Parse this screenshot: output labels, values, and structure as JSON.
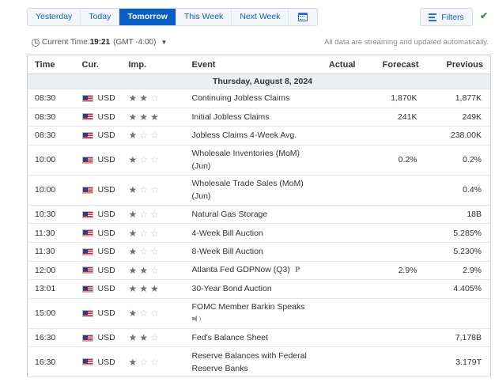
{
  "tabs": [
    {
      "label": "Yesterday",
      "active": false
    },
    {
      "label": "Today",
      "active": false
    },
    {
      "label": "Tomorrow",
      "active": true
    },
    {
      "label": "This Week",
      "active": false
    },
    {
      "label": "Next Week",
      "active": false
    }
  ],
  "filters_label": "Filters",
  "time_bar": {
    "label": "Current Time:",
    "time": "19:21",
    "timezone": "(GMT -4:00)"
  },
  "streaming_note": "All data are streaming and updated automatically.",
  "columns": {
    "time": "Time",
    "currency": "Cur.",
    "importance": "Imp.",
    "event": "Event",
    "actual": "Actual",
    "forecast": "Forecast",
    "previous": "Previous"
  },
  "day_header": "Thursday, August 8, 2024",
  "events": [
    {
      "time": "08:30",
      "currency": "USD",
      "importance": 2,
      "event": "Continuing Jobless Claims",
      "event_sub": "",
      "actual": "",
      "forecast": "1,870K",
      "previous": "1,877K",
      "tag": ""
    },
    {
      "time": "08:30",
      "currency": "USD",
      "importance": 3,
      "event": "Initial Jobless Claims",
      "event_sub": "",
      "actual": "",
      "forecast": "241K",
      "previous": "249K",
      "tag": ""
    },
    {
      "time": "08:30",
      "currency": "USD",
      "importance": 1,
      "event": "Jobless Claims 4-Week Avg.",
      "event_sub": "",
      "actual": "",
      "forecast": "",
      "previous": "238.00K",
      "tag": ""
    },
    {
      "time": "10:00",
      "currency": "USD",
      "importance": 1,
      "event": "Wholesale Inventories (MoM)",
      "event_sub": "(Jun)",
      "actual": "",
      "forecast": "0.2%",
      "previous": "0.2%",
      "tag": ""
    },
    {
      "time": "10:00",
      "currency": "USD",
      "importance": 1,
      "event": "Wholesale Trade Sales (MoM)",
      "event_sub": "(Jun)",
      "actual": "",
      "forecast": "",
      "previous": "0.4%",
      "tag": ""
    },
    {
      "time": "10:30",
      "currency": "USD",
      "importance": 1,
      "event": "Natural Gas Storage",
      "event_sub": "",
      "actual": "",
      "forecast": "",
      "previous": "18B",
      "tag": ""
    },
    {
      "time": "11:30",
      "currency": "USD",
      "importance": 1,
      "event": "4-Week Bill Auction",
      "event_sub": "",
      "actual": "",
      "forecast": "",
      "previous": "5.285%",
      "tag": ""
    },
    {
      "time": "11:30",
      "currency": "USD",
      "importance": 1,
      "event": "8-Week Bill Auction",
      "event_sub": "",
      "actual": "",
      "forecast": "",
      "previous": "5.230%",
      "tag": ""
    },
    {
      "time": "12:00",
      "currency": "USD",
      "importance": 2,
      "event": "Atlanta Fed GDPNow (Q3)",
      "event_sub": "",
      "actual": "",
      "forecast": "2.9%",
      "previous": "2.9%",
      "tag": "P"
    },
    {
      "time": "13:01",
      "currency": "USD",
      "importance": 3,
      "event": "30-Year Bond Auction",
      "event_sub": "",
      "actual": "",
      "forecast": "",
      "previous": "4.405%",
      "tag": ""
    },
    {
      "time": "15:00",
      "currency": "USD",
      "importance": 1,
      "event": "FOMC Member Barkin Speaks",
      "event_sub": "",
      "actual": "",
      "forecast": "",
      "previous": "",
      "tag": "speech",
      "speech": true
    },
    {
      "time": "16:30",
      "currency": "USD",
      "importance": 2,
      "event": "Fed's Balance Sheet",
      "event_sub": "",
      "actual": "",
      "forecast": "",
      "previous": "7,178B",
      "tag": ""
    },
    {
      "time": "16:30",
      "currency": "USD",
      "importance": 1,
      "event": "Reserve Balances with Federal",
      "event_sub": "Reserve Banks",
      "actual": "",
      "forecast": "",
      "previous": "3.179T",
      "tag": ""
    }
  ],
  "icons": {
    "calendar": "calendar-icon",
    "filter": "filter-sliders-icon",
    "check": "checkmark-icon",
    "clock": "clock-icon",
    "flag": "us-flag-icon",
    "star": "star-icon",
    "speaker": "speaker-icon"
  },
  "colors": {
    "accent": "#0a5dc2",
    "link": "#1a5fb4",
    "check": "#2e9b2e",
    "star_on": "#707070",
    "star_off": "#c8c8c8"
  }
}
